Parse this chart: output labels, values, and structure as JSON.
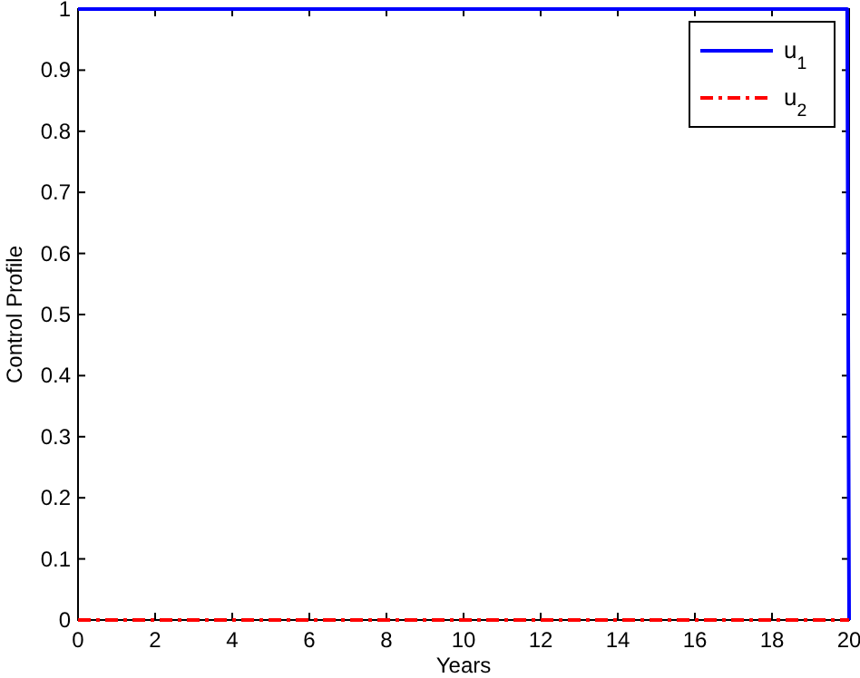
{
  "chart_data": {
    "type": "line",
    "xlabel": "Years",
    "ylabel": "Control Profile",
    "xlim": [
      0,
      20
    ],
    "ylim": [
      0,
      1
    ],
    "xticks": [
      0,
      2,
      4,
      6,
      8,
      10,
      12,
      14,
      16,
      18,
      20
    ],
    "yticks": [
      0,
      0.1,
      0.2,
      0.3,
      0.4,
      0.5,
      0.6,
      0.7,
      0.8,
      0.9,
      1
    ],
    "legend": "top right",
    "grid": false,
    "series": [
      {
        "name": "u$_{1}$",
        "color": "#0000ff",
        "x": [
          0,
          19.95,
          20
        ],
        "values": [
          1,
          1,
          0
        ],
        "line_style": "solid"
      },
      {
        "name": "u$_{2}$",
        "color": "#ff0000",
        "x": [
          0,
          20
        ],
        "values": [
          0,
          0
        ],
        "line_style": "dashdot"
      }
    ]
  }
}
